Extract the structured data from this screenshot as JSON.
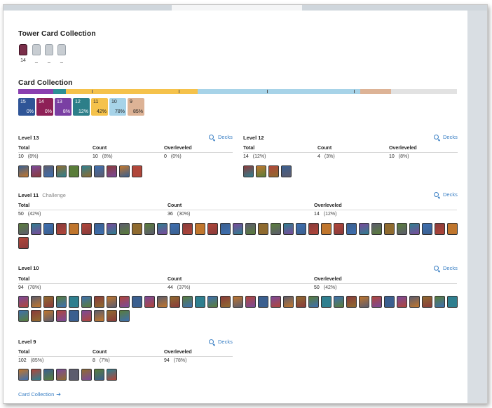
{
  "tower": {
    "title": "Tower Card Collection",
    "towers": [
      {
        "label": "14",
        "active": true
      },
      {
        "label": "_",
        "active": false
      },
      {
        "label": "_",
        "active": false
      },
      {
        "label": "_",
        "active": false
      }
    ]
  },
  "collection": {
    "title": "Card Collection",
    "chips": [
      {
        "level": "15",
        "percent": "0%",
        "color": "#2f5597"
      },
      {
        "level": "14",
        "percent": "0%",
        "color": "#8e2057"
      },
      {
        "level": "13",
        "percent": "8%",
        "color": "#7a3fa3"
      },
      {
        "level": "12",
        "percent": "12%",
        "color": "#2d7f89"
      },
      {
        "level": "11",
        "percent": "42%",
        "color": "#f5c24b"
      },
      {
        "level": "10",
        "percent": "78%",
        "color": "#a7d3e8"
      },
      {
        "level": "9",
        "percent": "85%",
        "color": "#ddb396"
      }
    ]
  },
  "sections": [
    {
      "title": "Level 13",
      "subtitle": "",
      "decks": "Decks",
      "total_label": "Total",
      "count_label": "Count",
      "over_label": "Overleveled",
      "total": "10",
      "total_pct": "(8%)",
      "count": "10",
      "count_pct": "(8%)",
      "over": "0",
      "over_pct": "(0%)",
      "card_count": 10
    },
    {
      "title": "Level 12",
      "subtitle": "",
      "decks": "Decks",
      "total_label": "Total",
      "count_label": "Count",
      "over_label": "Overleveled",
      "total": "14",
      "total_pct": "(12%)",
      "count": "4",
      "count_pct": "(3%)",
      "over": "10",
      "over_pct": "(8%)",
      "card_count": 4
    },
    {
      "title": "Level 11",
      "subtitle": "Challenge",
      "decks": "Decks",
      "total_label": "Total",
      "count_label": "Count",
      "over_label": "Overleveled",
      "total": "50",
      "total_pct": "(42%)",
      "count": "36",
      "count_pct": "(30%)",
      "over": "14",
      "over_pct": "(12%)",
      "card_count": 36
    },
    {
      "title": "Level 10",
      "subtitle": "",
      "decks": "Decks",
      "total_label": "Total",
      "count_label": "Count",
      "over_label": "Overleveled",
      "total": "94",
      "total_pct": "(78%)",
      "count": "44",
      "count_pct": "(37%)",
      "over": "50",
      "over_pct": "(42%)",
      "card_count": 44
    },
    {
      "title": "Level 9",
      "subtitle": "",
      "decks": "Decks",
      "total_label": "Total",
      "count_label": "Count",
      "over_label": "Overleveled",
      "total": "102",
      "total_pct": "(85%)",
      "count": "8",
      "count_pct": "(7%)",
      "over": "94",
      "over_pct": "(78%)",
      "card_count": 8
    }
  ],
  "footer_link": "Card Collection",
  "colors": {
    "accent": "#3a7fc4",
    "card_palette": [
      "#3b5f8f",
      "#8a3b3b",
      "#5a7d3a",
      "#7a4a9a",
      "#c0762d",
      "#2f7f8f",
      "#5c5c6e",
      "#b0463a",
      "#3e6fb0",
      "#8f6b2f"
    ]
  }
}
